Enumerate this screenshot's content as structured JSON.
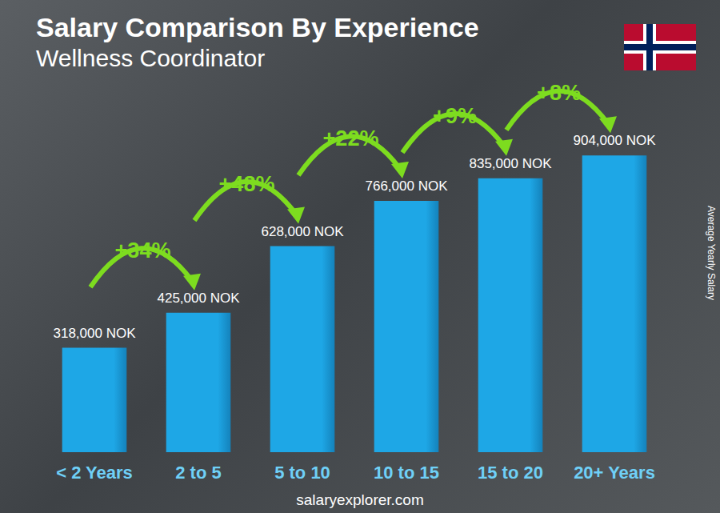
{
  "chart_data": {
    "type": "bar",
    "title": "Salary Comparison By Experience",
    "subtitle": "Wellness Coordinator",
    "ylabel": "Average Yearly Salary",
    "source": "salaryexplorer.com",
    "categories": [
      "< 2 Years",
      "2 to 5",
      "5 to 10",
      "10 to 15",
      "15 to 20",
      "20+ Years"
    ],
    "values": [
      318000,
      425000,
      628000,
      766000,
      835000,
      904000
    ],
    "value_labels": [
      "318,000 NOK",
      "425,000 NOK",
      "628,000 NOK",
      "766,000 NOK",
      "835,000 NOK",
      "904,000 NOK"
    ],
    "changes": [
      "+34%",
      "+48%",
      "+22%",
      "+9%",
      "+8%"
    ],
    "color": "#1ea7e6",
    "ylim": [
      0,
      1000000
    ],
    "yticks": [
      0,
      1000000
    ],
    "grid": false,
    "data_labels": true,
    "tick_labels": "x"
  }
}
